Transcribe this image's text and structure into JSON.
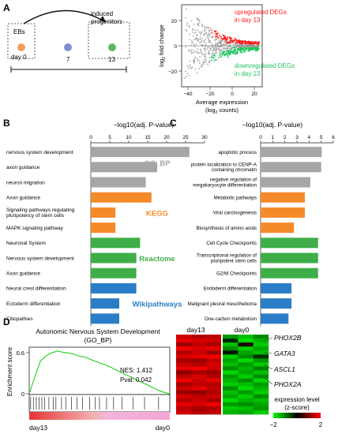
{
  "panel_letters": [
    "A",
    "B",
    "C",
    "D"
  ],
  "panel_a": {
    "timeline": {
      "start_label": "EBs",
      "end_label_line1": "induced",
      "end_label_line2": "progenitors",
      "day0_label": "day 0",
      "day7_label": "7",
      "day13_label": "13",
      "colors": {
        "day0": "#f4a05a",
        "day7": "#7f8fd3",
        "day13": "#5cb85c"
      }
    },
    "ma_plot": {
      "ylabel_prefix": "log",
      "ylabel_sub": "2",
      "ylabel_suffix": " fold change",
      "xlabel_line1": "Average expression",
      "xlabel_line2_prefix": "(log",
      "xlabel_line2_sub": "2",
      "xlabel_line2_suffix": " counts)",
      "up_label_line1": "upregulated DEGs",
      "up_label_line2": "in day 13",
      "down_label_line1": "downregulated DEGs",
      "down_label_line2": "in day 13",
      "x_ticks": [
        "−40",
        "−20",
        "0",
        "20"
      ],
      "y_ticks": [
        "20",
        "0",
        "−20"
      ],
      "colors": {
        "up": "#ff1a1a",
        "down": "#22c55e",
        "ns": "#a8a8a8"
      }
    }
  },
  "chart_data": [
    {
      "type": "bar",
      "panel": "B",
      "title": "−log10(adj. P-value)",
      "xlim": [
        0,
        30
      ],
      "x_ticks": [
        "0",
        "5",
        "10",
        "15",
        "20",
        "25",
        "30"
      ],
      "categories": [
        "nervous system development",
        "axon guidance",
        "neuron migration",
        "Axon guidance",
        "Signaling pathways regulating pluripotency of stem cells",
        "MAPK signaling pathway",
        "Neuronal System",
        "Nervous system development",
        "Axon guidance",
        "Neural crest differentiation",
        "Ectoderm differentiation",
        "Ciliopathies"
      ],
      "values": [
        26,
        17.5,
        14.5,
        16,
        6.5,
        6.5,
        13,
        12,
        12,
        12,
        7.5,
        7.5
      ],
      "groups": [
        {
          "name": "GO_BP",
          "color": "#a6a6a6",
          "count": 3
        },
        {
          "name": "KEGG",
          "color": "#f58a2a",
          "count": 3
        },
        {
          "name": "Reactome",
          "color": "#3fae49",
          "count": 3
        },
        {
          "name": "Wikipathways",
          "color": "#2a7dc7",
          "count": 3
        }
      ]
    },
    {
      "type": "bar",
      "panel": "C",
      "title": "−log10(adj. P-value)",
      "xlim": [
        0,
        6
      ],
      "x_ticks": [
        "0",
        "1",
        "2",
        "3",
        "4",
        "5",
        "6"
      ],
      "categories": [
        "apoptotic process",
        "protein localization to CENP-A containing chromatin",
        "negative regulation of megakaryocyte differentiation",
        "Metabolic pathways",
        "Viral carcinogenesis",
        "Biosynthesis of amino acids",
        "Cell Cycle Checkpoints",
        "Transcriptional regulation of pluripotent stem cells",
        "G2/M Checkpoints",
        "Endoderm differentiation",
        "Malignant pleural mesothelioma",
        "One-carbon metabolism"
      ],
      "values": [
        5.05,
        5.0,
        4.1,
        3.65,
        3.65,
        2.75,
        4.75,
        4.75,
        4.75,
        2.55,
        2.55,
        2.3
      ],
      "groups": [
        {
          "name": "GO_BP",
          "color": "#a6a6a6",
          "count": 3
        },
        {
          "name": "KEGG",
          "color": "#f58a2a",
          "count": 3
        },
        {
          "name": "Reactome",
          "color": "#3fae49",
          "count": 3
        },
        {
          "name": "Wikipathways",
          "color": "#2a7dc7",
          "count": 3
        }
      ]
    },
    {
      "type": "line",
      "panel": "D",
      "title_line1": "Autonomic Nervous System Development",
      "title_line2": "(GO_BP)",
      "ylabel": "Enrichment score",
      "y_ticks": [
        "0.6",
        "0"
      ],
      "ylim": [
        0,
        0.65
      ],
      "x_start_label": "day13",
      "x_end_label": "day0",
      "nes_label": "NES: 1.412",
      "pval_label": "Pval: 0.042",
      "x": [
        0,
        0.04,
        0.08,
        0.12,
        0.16,
        0.2,
        0.24,
        0.28,
        0.32,
        0.36,
        0.4,
        0.44,
        0.48,
        0.52,
        0.56,
        0.6,
        0.64,
        0.68,
        0.72,
        0.76,
        0.8,
        0.84,
        0.88,
        0.92,
        0.96,
        1.0
      ],
      "y": [
        0,
        0.25,
        0.48,
        0.56,
        0.6,
        0.63,
        0.61,
        0.6,
        0.58,
        0.55,
        0.54,
        0.5,
        0.47,
        0.44,
        0.41,
        0.37,
        0.33,
        0.29,
        0.25,
        0.21,
        0.17,
        0.13,
        0.09,
        0.05,
        0.02,
        0.0
      ],
      "hits": [
        0.01,
        0.03,
        0.05,
        0.07,
        0.09,
        0.11,
        0.14,
        0.17,
        0.19,
        0.23,
        0.26,
        0.3,
        0.34,
        0.38,
        0.43,
        0.47,
        0.5,
        0.55,
        0.6,
        0.66,
        0.74,
        0.82,
        0.92
      ],
      "line_color": "#1fd11f"
    },
    {
      "type": "heatmap",
      "panel": "D",
      "col_labels": [
        "day13",
        "day0"
      ],
      "gene_labels": [
        "PHOX2B",
        "GATA3",
        "ASCL1",
        "PHOX2A"
      ],
      "legend_title_line1": "expression level",
      "legend_title_line2": "(z-score)",
      "legend_min": "−2",
      "legend_max": "2",
      "rows": 20,
      "cols_per_group": 3,
      "values_day13": [
        [
          1.6,
          1.4,
          1.5
        ],
        [
          1.8,
          1.7,
          1.6
        ],
        [
          1.2,
          1.5,
          1.3
        ],
        [
          1.9,
          1.7,
          1.8
        ],
        [
          1.4,
          1.6,
          1.2
        ],
        [
          1.7,
          1.8,
          1.9
        ],
        [
          1.3,
          1.2,
          1.5
        ],
        [
          1.6,
          1.4,
          1.7
        ],
        [
          1.8,
          1.9,
          1.6
        ],
        [
          1.1,
          1.3,
          1.2
        ],
        [
          1.5,
          1.7,
          1.4
        ],
        [
          1.9,
          1.6,
          1.8
        ],
        [
          1.3,
          1.5,
          1.4
        ],
        [
          1.6,
          1.8,
          1.5
        ],
        [
          1.2,
          1.1,
          1.4
        ],
        [
          1.7,
          1.5,
          1.6
        ],
        [
          1.4,
          1.6,
          1.3
        ],
        [
          1.8,
          1.7,
          1.9
        ],
        [
          1.5,
          1.3,
          1.4
        ],
        [
          1.6,
          1.4,
          1.5
        ]
      ],
      "values_day0": [
        [
          -1.2,
          -1.5,
          -1.1
        ],
        [
          -0.3,
          -1.7,
          -1.4
        ],
        [
          -1.5,
          0.2,
          -1.6
        ],
        [
          -1.1,
          -1.6,
          -1.3
        ],
        [
          -0.2,
          -1.3,
          -1.5
        ],
        [
          -1.6,
          -1.1,
          -0.4
        ],
        [
          -1.3,
          -1.7,
          -1.2
        ],
        [
          -1.5,
          -1.2,
          -1.6
        ],
        [
          -1.1,
          -1.4,
          -1.0
        ],
        [
          -1.7,
          -1.3,
          -1.5
        ],
        [
          -1.2,
          -1.6,
          -1.1
        ],
        [
          -1.4,
          -1.1,
          -1.7
        ],
        [
          -1.6,
          -1.5,
          -1.2
        ],
        [
          -1.1,
          -1.7,
          -1.4
        ],
        [
          -1.5,
          -1.2,
          -1.6
        ],
        [
          -1.3,
          -1.6,
          -1.1
        ],
        [
          -1.7,
          -1.4,
          -1.5
        ],
        [
          -1.2,
          -1.1,
          -1.3
        ],
        [
          -1.6,
          -1.5,
          -1.2
        ],
        [
          -1.4,
          -1.3,
          -1.6
        ]
      ]
    }
  ]
}
